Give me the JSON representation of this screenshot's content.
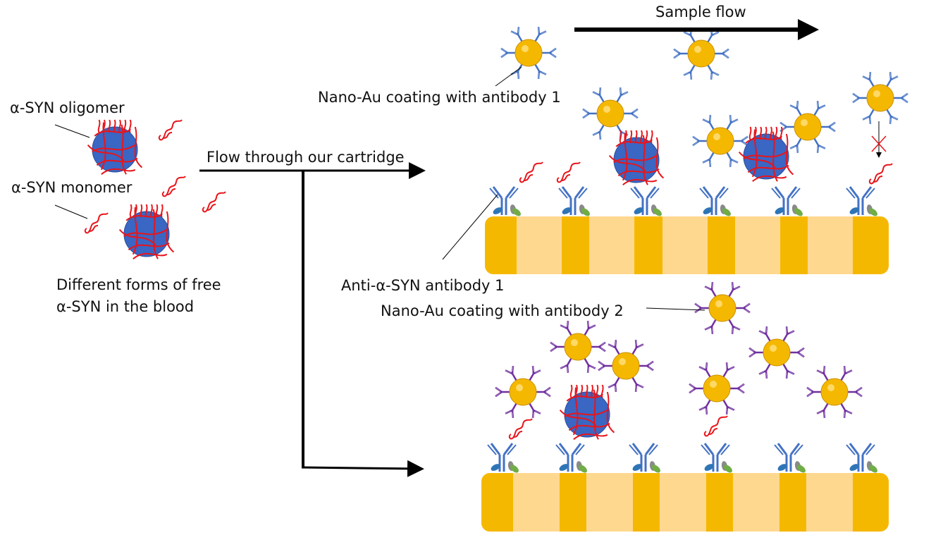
{
  "labels": {
    "oligomer": "α-SYN oligomer",
    "monomer": "α-SYN monomer",
    "free_forms_line1": "Different forms of free",
    "free_forms_line2": "α-SYN in the blood",
    "flow_through": "Flow through our cartridge",
    "sample_flow": "Sample flow",
    "nano_au_ab1": "Nano-Au coating with antibody 1",
    "anti_ab1": "Anti-α-SYN antibody 1",
    "nano_au_ab2": "Nano-Au coating with antibody 2"
  },
  "colors": {
    "gold": "#f5b800",
    "gold_light": "#ffd966",
    "strip_light": "#ffd890",
    "aggregate_blue": "#3a66c4",
    "strand_red": "#e8151b",
    "antibody1_blue": "#4472c4",
    "antibody2_purple": "#7030a0",
    "arrow": "#000000"
  },
  "icons": [
    "red-x-icon"
  ]
}
